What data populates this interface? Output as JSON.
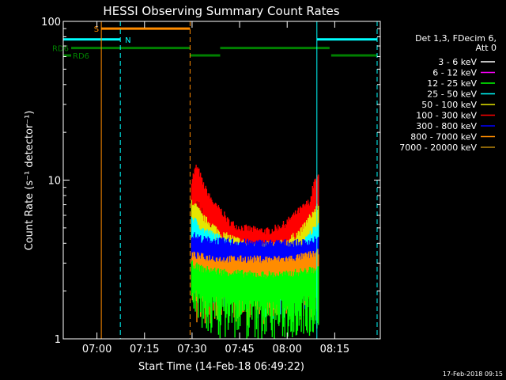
{
  "chart_data": {
    "type": "line",
    "title": "HESSI Observing Summary Count Rates",
    "xlabel": "Start Time (14-Feb-18 06:49:22)",
    "ylabel": "Count Rate (s⁻¹ detector⁻¹)",
    "yscale": "log",
    "ylim": [
      1,
      100
    ],
    "xlim_minutes": [
      0,
      100
    ],
    "x_ticks": [
      {
        "min": 10.63,
        "label": "07:00"
      },
      {
        "min": 25.63,
        "label": "07:15"
      },
      {
        "min": 40.63,
        "label": "07:30"
      },
      {
        "min": 55.63,
        "label": "07:45"
      },
      {
        "min": 70.63,
        "label": "08:00"
      },
      {
        "min": 85.63,
        "label": "08:15"
      }
    ],
    "y_ticks": [
      {
        "v": 1,
        "label": "1"
      },
      {
        "v": 10,
        "label": "10"
      },
      {
        "v": 100,
        "label": "100"
      }
    ],
    "legend_header": [
      "Det 1,3, FDecim 6,",
      "Att 0"
    ],
    "legend_position": "right",
    "series": [
      {
        "name": "3 - 6 keV",
        "color": "#ffffff"
      },
      {
        "name": "6 - 12 keV",
        "color": "#ff00ff"
      },
      {
        "name": "12 - 25 keV",
        "color": "#00ff00"
      },
      {
        "name": "25 - 50 keV",
        "color": "#00ffff"
      },
      {
        "name": "50 - 100 keV",
        "color": "#e6e600"
      },
      {
        "name": "100 - 300 keV",
        "color": "#ff0000"
      },
      {
        "name": "300 - 800 keV",
        "color": "#0000ff"
      },
      {
        "name": "800 - 7000 keV",
        "color": "#ff8c00"
      },
      {
        "name": "7000 - 20000 keV",
        "color": "#b8860b"
      }
    ],
    "band_levels": [
      {
        "band": "100 - 300 keV",
        "x": [
          40.5,
          42,
          43,
          44,
          46,
          48,
          50,
          52,
          55,
          60,
          65,
          70,
          72,
          75,
          78,
          79,
          80.5
        ],
        "y": [
          9.5,
          11.5,
          10.5,
          9.0,
          7.5,
          6.5,
          6.0,
          5.2,
          4.8,
          4.6,
          4.5,
          5.0,
          5.5,
          6.2,
          7.0,
          9.0,
          10.0
        ]
      },
      {
        "band": "50 - 100 keV",
        "x": [
          40.5,
          44,
          50,
          60,
          70,
          75,
          80.5
        ],
        "y": [
          7.0,
          5.5,
          4.3,
          3.6,
          3.8,
          4.5,
          6.5
        ]
      },
      {
        "band": "25 - 50 keV",
        "x": [
          40.5,
          44,
          50,
          60,
          70,
          75,
          80.5
        ],
        "y": [
          5.5,
          4.6,
          4.0,
          3.3,
          3.3,
          3.6,
          5.0
        ]
      },
      {
        "band": "300 - 800 keV",
        "x": [
          40.5,
          44,
          50,
          60,
          70,
          75,
          80.5
        ],
        "y": [
          4.3,
          4.0,
          3.9,
          3.8,
          3.8,
          3.8,
          4.0
        ]
      },
      {
        "band": "800 - 7000 keV",
        "x": [
          40.5,
          44,
          50,
          60,
          70,
          75,
          80.5
        ],
        "y": [
          3.2,
          3.1,
          3.0,
          3.0,
          3.0,
          3.1,
          3.3
        ]
      },
      {
        "band": "12 - 25 keV",
        "x": [
          40.5,
          44,
          50,
          60,
          70,
          75,
          80.5
        ],
        "y": [
          2.8,
          2.6,
          2.5,
          2.4,
          2.4,
          2.5,
          2.6
        ]
      }
    ],
    "observing_flags": [
      {
        "label": "S",
        "color": "#ff8c00",
        "level": 90,
        "segments": [
          [
            12,
            40
          ]
        ]
      },
      {
        "label": "N",
        "color": "#00ffff",
        "level": 77,
        "segments": [
          [
            0,
            18
          ],
          [
            80,
            99
          ]
        ]
      },
      {
        "label": "RD6",
        "color": "#008000",
        "level": 68,
        "segments": [
          [
            2.5,
            40
          ],
          [
            49.5,
            84
          ]
        ]
      },
      {
        "label": "RD6",
        "color": "#008000",
        "level": 61,
        "segments": [
          [
            0,
            2.5
          ],
          [
            40,
            49.5
          ],
          [
            84.5,
            99
          ]
        ]
      }
    ],
    "vertical_markers": [
      {
        "min": 0,
        "color": "#00ffff",
        "style": "solid"
      },
      {
        "min": 12,
        "color": "#ff8c00",
        "style": "solid"
      },
      {
        "min": 18,
        "color": "#00ffff",
        "style": "dashed"
      },
      {
        "min": 40,
        "color": "#ff8c00",
        "style": "dashed"
      },
      {
        "min": 80,
        "color": "#00ffff",
        "style": "solid"
      },
      {
        "min": 99,
        "color": "#00ffff",
        "style": "dashed"
      }
    ],
    "footer": "17-Feb-2018 09:15"
  }
}
